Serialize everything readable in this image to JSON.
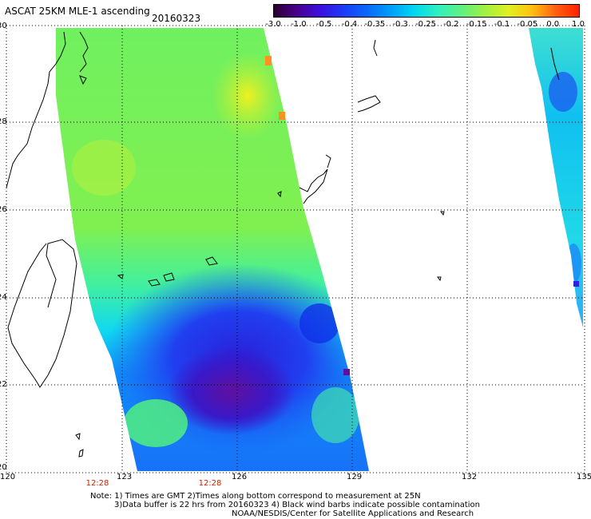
{
  "header": {
    "title": "ASCAT 25KM MLE-1 ascending",
    "date": "20160323"
  },
  "colorbar": {
    "labels": [
      "-3.0",
      "-1.0",
      "-0.5",
      "-0.4",
      "-0.35",
      "-0.3",
      "-0.25",
      "-0.2",
      "-0.15",
      "-0.1",
      "-0.05",
      "0.0",
      "1.0"
    ],
    "colors": [
      "#2a0030",
      "#4b0090",
      "#3a10e0",
      "#1a3cf8",
      "#0a6af8",
      "#00a0f8",
      "#00d8f0",
      "#30f0c0",
      "#60f080",
      "#a0f040",
      "#e0f020",
      "#ffc010",
      "#ff6010",
      "#ff2000"
    ]
  },
  "map": {
    "lat_labels": [
      "30",
      "28",
      "26",
      "24",
      "22",
      "20"
    ],
    "lon_labels": [
      "120",
      "123",
      "126",
      "129",
      "132",
      "135"
    ],
    "times": [
      "12:28",
      "12:28"
    ]
  },
  "notes": {
    "line1": "Note: 1) Times are GMT 2)Times along bottom correspond to measurement at 25N",
    "line2": "3)Data buffer is 22 hrs from 20160323 4) Black wind barbs indicate possible contamination",
    "line3": "NOAA/NESDIS/Center for Satellite Applications and Research"
  }
}
